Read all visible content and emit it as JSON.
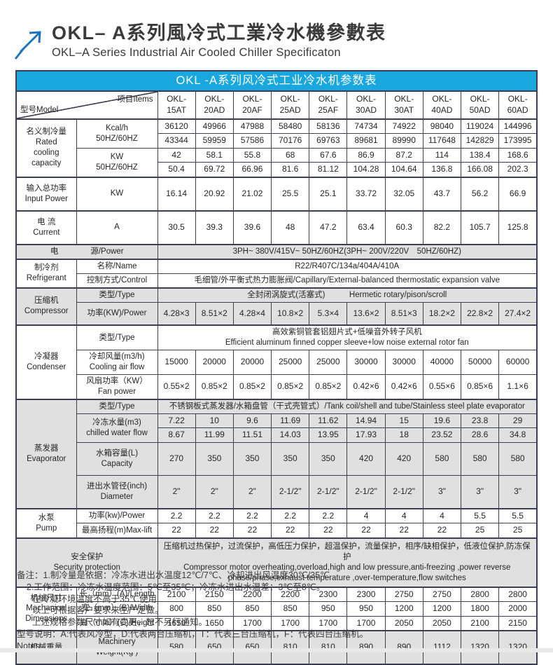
{
  "colors": {
    "accent_blue": "#19a7e0",
    "logo_blue": "#1c75bc",
    "row_gray": "#e0e0e0",
    "border": "#3c3e52"
  },
  "page_header": {
    "title_zh": "OKL– A系列風冷式工業冷水機參數表",
    "title_en": "OKL–A Series Industrial Air Cooled Chiller Specificaton"
  },
  "table": {
    "caption": "OKL -A系列风冷式工业冷水机参数表",
    "corner": {
      "bottom_left": "型号Model",
      "top_right": "项目Items"
    },
    "models": [
      "OKL-\n15AT",
      "OKL-\n20AD",
      "OKL-\n20AF",
      "OKL-\n25AD",
      "OKL-\n25AF",
      "OKL-\n30AD",
      "OKL-\n30AT",
      "OKL-\n40AD",
      "OKL-\n50AD",
      "OKL-\n60AD"
    ],
    "rows": [
      {
        "sec": "名义制冷量\nRated\ncooling\ncapacity",
        "secSpan": 4,
        "item": "Kcal/h\n50HZ/60HZ",
        "itemSpan": 2,
        "cells": [
          "36120",
          "49966",
          "47988",
          "58480",
          "58136",
          "74734",
          "74922",
          "98040",
          "119024",
          "144996"
        ],
        "thick": true
      },
      {
        "cells": [
          "43344",
          "59959",
          "57586",
          "70176",
          "69763",
          "89681",
          "89990",
          "117648",
          "142829",
          "173995"
        ]
      },
      {
        "item": "KW\n50HZ/60HZ",
        "itemSpan": 2,
        "cells": [
          "42",
          "58.1",
          "55.8",
          "68",
          "67.6",
          "86.9",
          "87.2",
          "114",
          "138.4",
          "168.6"
        ]
      },
      {
        "cells": [
          "50.4",
          "69.72",
          "66.96",
          "81.6",
          "81.12",
          "104.28",
          "104.64",
          "136.8",
          "166.08",
          "202.3"
        ]
      },
      {
        "sec": "输入总功率\nInput Power",
        "item": "KW",
        "cells": [
          "16.14",
          "20.92",
          "21.02",
          "25.5",
          "25.1",
          "33.72",
          "32.05",
          "43.7",
          "56.2",
          "66.9"
        ],
        "thick": true,
        "tall": true
      },
      {
        "sec": "电 流\nCurrent",
        "item": "A",
        "cells": [
          "30.5",
          "39.3",
          "39.6",
          "48",
          "47.2",
          "63.4",
          "60.3",
          "82.2",
          "105.7",
          "125.8"
        ],
        "thick": true,
        "tall": true
      },
      {
        "label2": "电　　　　源/Power",
        "wide": "3PH~ 380V/415V~ 50HZ/60HZ(3PH~ 200V/220V　50HZ/60HZ)",
        "gray": true,
        "thick": true
      },
      {
        "sec": "制冷剂\nRefrigerant",
        "secSpan": 2,
        "item": "名称/Name",
        "wide": "R22/R407C/134a/404A/410A",
        "thick": true
      },
      {
        "item": "控制方式/Control",
        "wide": "毛细管/外平衡式热力膨胀阀/Capillary/External-balanced thermostatic expansion valve"
      },
      {
        "sec": "压缩机\nCompressor",
        "secSpan": 2,
        "item": "类型/Type",
        "wide": "全封闭涡旋式(活塞式)　　　Hermetic rotary/pison/scroll",
        "gray": true,
        "thick": true
      },
      {
        "item": "功率(KW)/Power",
        "cells": [
          "4.28×3",
          "8.51×2",
          "4.28×4",
          "10.8×2",
          "5.3×4",
          "13.6×2",
          "8.51×3",
          "18.2×2",
          "22.8×2",
          "27.4×2"
        ],
        "gray": true,
        "tall": true
      },
      {
        "sec": "冷凝器\nCondenser",
        "secSpan": 3,
        "item": "类型/Type",
        "wide": "高效紫铜管套铝翅片式+低噪音外转子风机\nEfficient aluminum finned copper sleeve+low noise external rotor fan",
        "thick": true
      },
      {
        "item": "冷却风量(m3/h)\nCooling air flow",
        "cells": [
          "15000",
          "20000",
          "20000",
          "25000",
          "25000",
          "30000",
          "30000",
          "40000",
          "50000",
          "60000"
        ]
      },
      {
        "item": "风扇功率（KW）\nFan power",
        "cells": [
          "0.55×2",
          "0.85×2",
          "0.85×2",
          "0.85×2",
          "0.85×2",
          "0.42×6",
          "0.42×6",
          "0.55×6",
          "0.85×6",
          "1.1×6"
        ]
      },
      {
        "sec": "蒸发器\nEvaporator",
        "secSpan": 5,
        "item": "类型/Type",
        "wide": "不锈钢板式蒸发器/水箱盘管（干式壳管式）/Tank coil/shell and tube/Stainless steel plate evaporator",
        "gray": true,
        "thick": true
      },
      {
        "item": "冷冻水量(m3)\nchilled water flow",
        "itemSpan": 2,
        "cells": [
          "7.22",
          "10",
          "9.6",
          "11.69",
          "11.62",
          "14.94",
          "15",
          "19.6",
          "23.8",
          "29"
        ],
        "gray": true
      },
      {
        "cells": [
          "8.67",
          "11.99",
          "11.51",
          "14.03",
          "13.95",
          "17.93",
          "18",
          "23.52",
          "28.6",
          "34.8"
        ],
        "gray": true
      },
      {
        "item": "水箱容量(L)\nCapacity",
        "cells": [
          "270",
          "350",
          "350",
          "350",
          "350",
          "420",
          "420",
          "580",
          "580",
          "580"
        ],
        "gray": true,
        "tall": true
      },
      {
        "item": "进出水管径(inch)\nDiameter",
        "cells": [
          "2\"",
          "2\"",
          "2\"",
          "2-1/2\"",
          "2-1/2\"",
          "2-1/2\"",
          "2-1/2\"",
          "3\"",
          "3\"",
          "3\""
        ],
        "gray": true,
        "tall": true
      },
      {
        "sec": "水泵\nPump",
        "secSpan": 2,
        "item": "功率(kw)/Power",
        "cells": [
          "2.2",
          "2.2",
          "2.2",
          "2.2",
          "2.2",
          "4",
          "4",
          "4",
          "5.5",
          "5.5"
        ],
        "thick": true
      },
      {
        "item": "最高扬程(m)Max-lift",
        "cells": [
          "22",
          "22",
          "22",
          "22",
          "22",
          "22",
          "22",
          "22",
          "25",
          "25"
        ]
      },
      {
        "labelWide": "安全保护\nSecurity protection",
        "wide": "压缩机过热保护，过流保护，高低压力保护，超温保护，流量保护，相序/缺相保护，低液位保护,防冻保护\nCompressor motor overheating,overload,high and low pressure,anti-freezing ,power reverse\nphase/phase,exhaust temperature ,over-temperature,flow switches",
        "gray": true,
        "thick": true,
        "security": true
      },
      {
        "sec": "机械尺寸\nMachanical\nDimensions",
        "secSpan": 3,
        "item": "长（mm）(A)/Length",
        "cells": [
          "2100",
          "2150",
          "2200",
          "2200",
          "2300",
          "2300",
          "2750",
          "2750",
          "2800",
          "2800"
        ],
        "thick": true
      },
      {
        "item": "宽（mm）(B)/Width",
        "cells": [
          "800",
          "850",
          "850",
          "850",
          "950",
          "950",
          "1200",
          "1200",
          "1800",
          "2000"
        ]
      },
      {
        "item": "高（mm）(C)/Height",
        "cells": [
          "1650",
          "1650",
          "1700",
          "1700",
          "1700",
          "1700",
          "2050",
          "2050",
          "2100",
          "2150"
        ]
      },
      {
        "sec": "机械重量",
        "item": "Machinery\nWeight(Kg )",
        "cells": [
          "580",
          "650",
          "650",
          "810",
          "810",
          "890",
          "890",
          "1112",
          "1320",
          "1320"
        ],
        "gray": true,
        "thick": true,
        "tall": true
      }
    ]
  },
  "notes": {
    "lines": [
      {
        "text": "备注：1.制冷量是依据：冷冻水进出水温度12℃/7℃、冷却进出风温度30℃/35℃",
        "indent": 0
      },
      {
        "text": "2.工作范围：冷冻水温度范围：5℃至35℃；冷冻水进出水温差：3℃至8℃。",
        "indent": 1
      },
      {
        "text": "在冷凝环境温度不高于35℃使用",
        "indent": 2
      },
      {
        "text": "以上可根据客户要求来生产定做。",
        "indent": 2
      },
      {
        "text": "上述规格参数尺寸如有变更，恕不另行通知。",
        "indent": 2
      },
      {
        "text": "型号说明：A:代表风冷型，D:代表两台压缩机，T：代表三台压缩机，F：代表四台压缩机。",
        "indent": 0
      },
      {
        "text": "Notes:",
        "indent": 0
      }
    ]
  }
}
